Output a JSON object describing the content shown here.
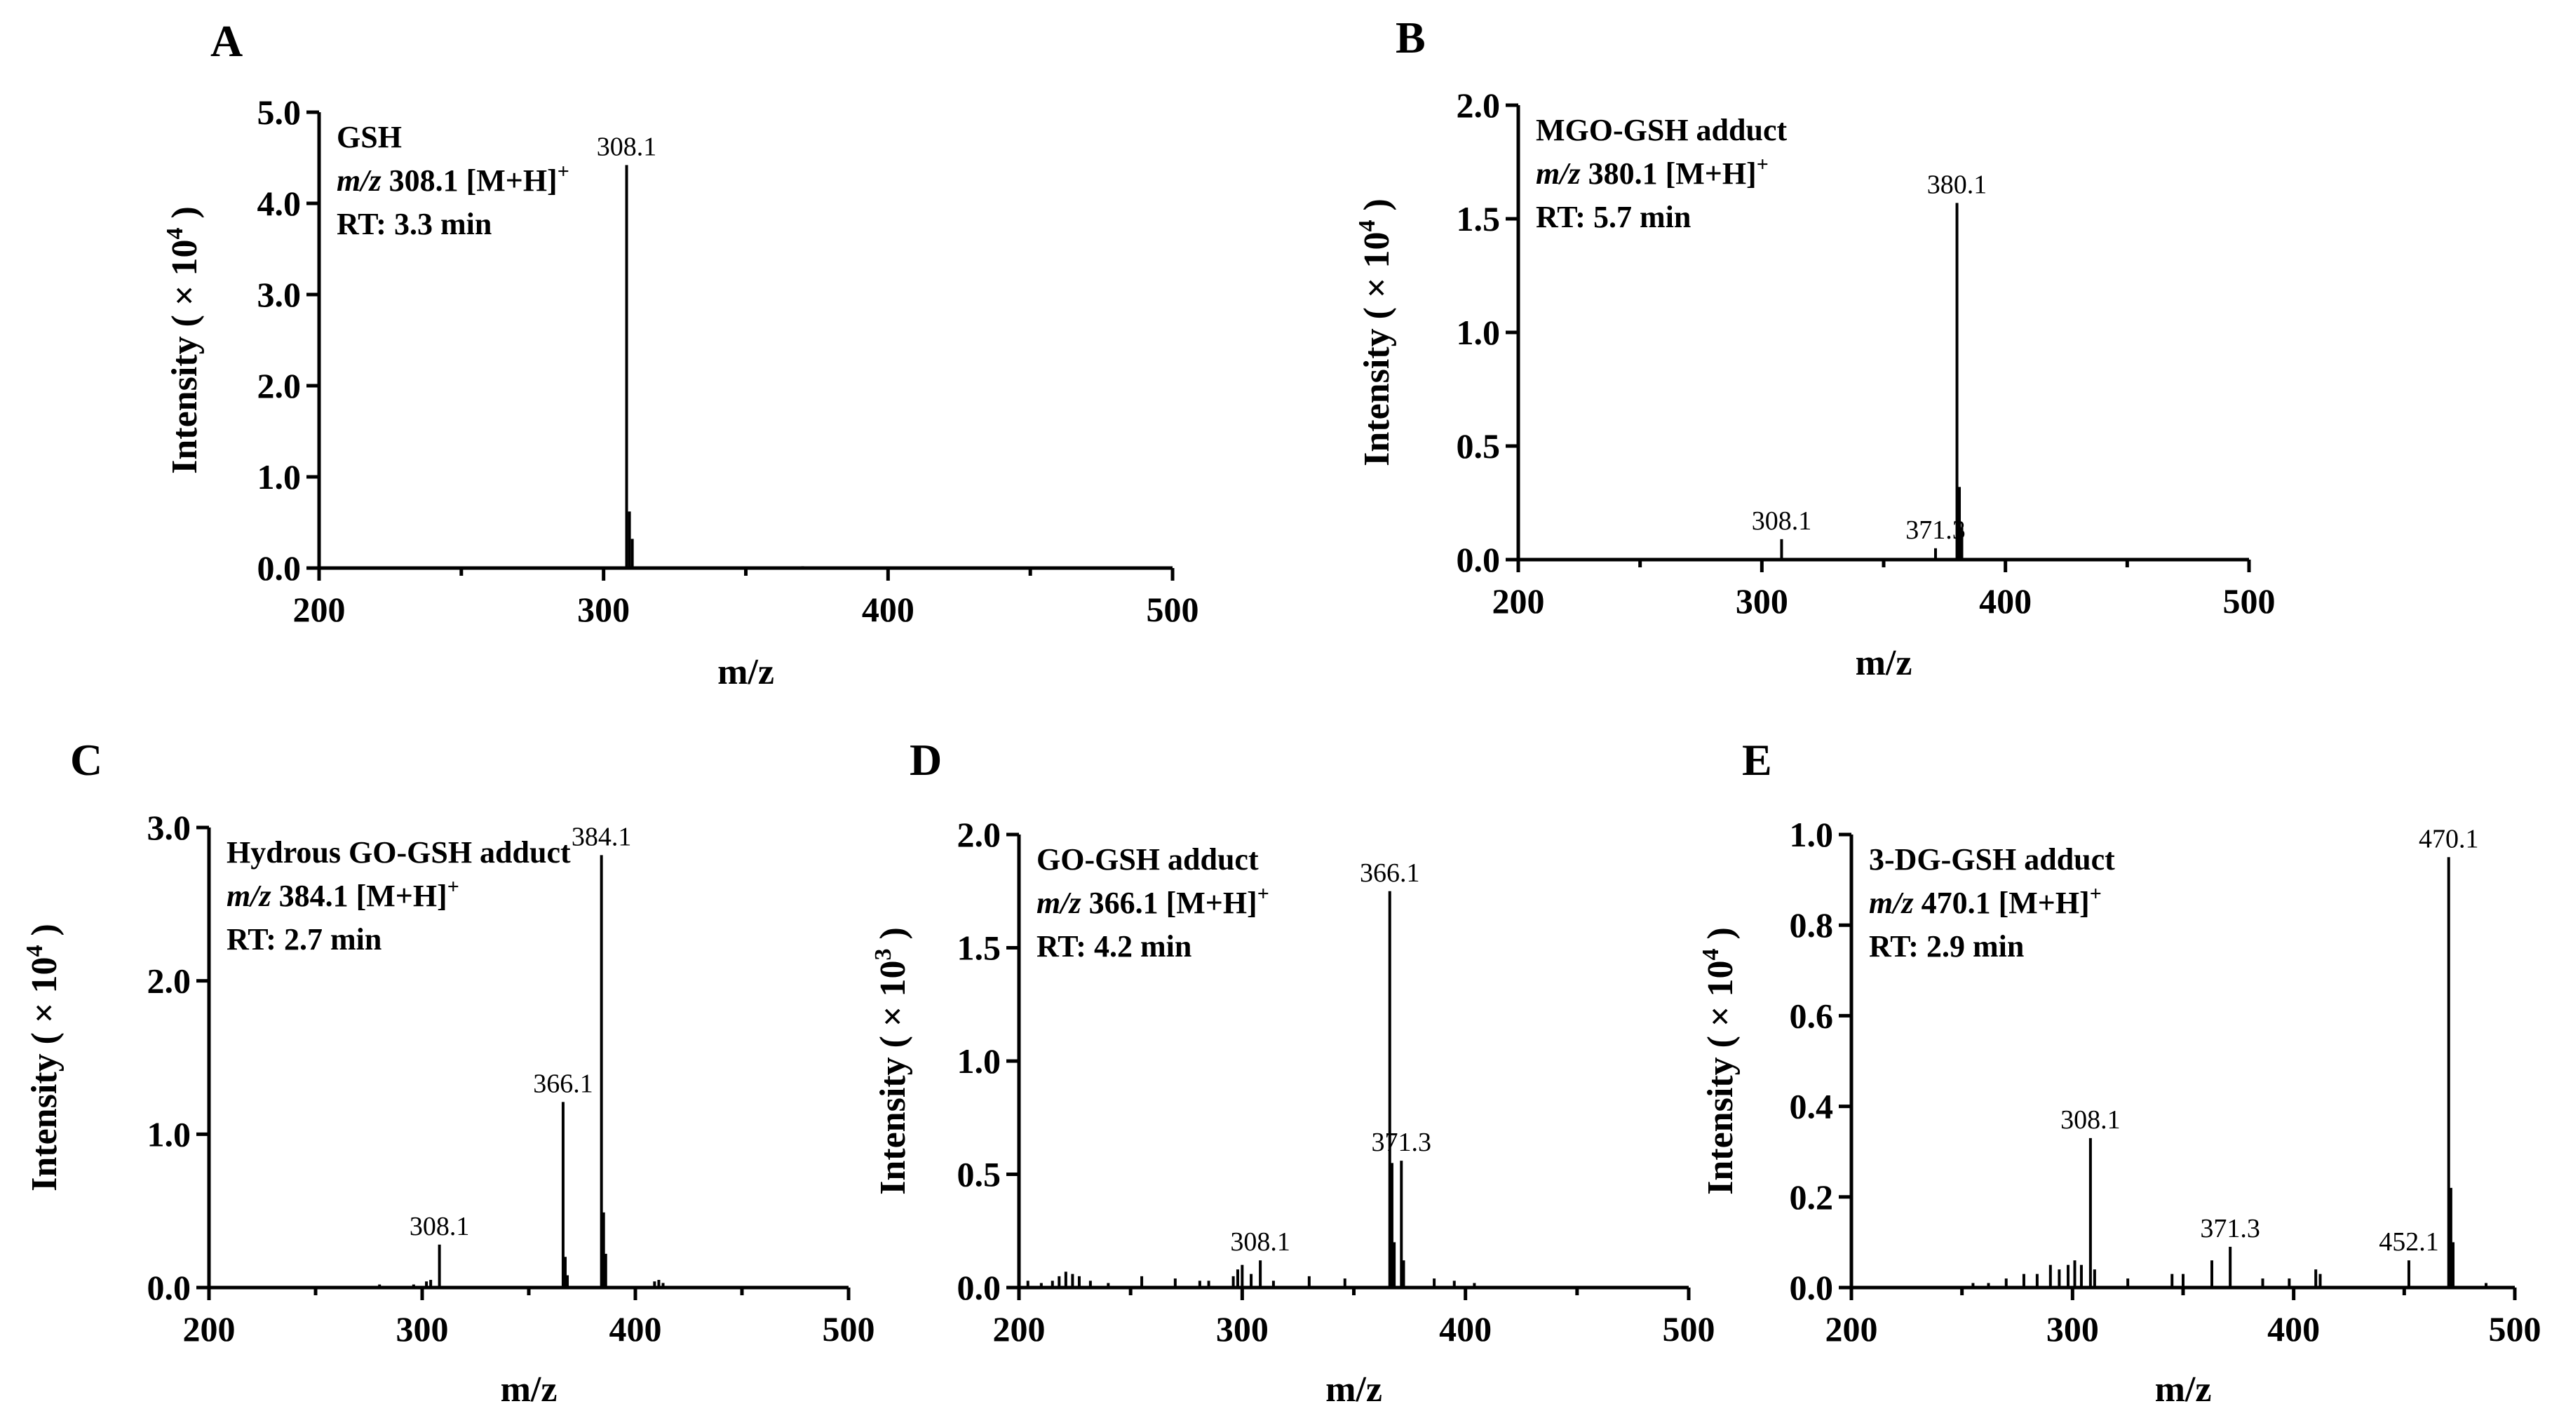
{
  "chart_data": [
    {
      "panel": "A",
      "type": "bar",
      "subtype": "mass spectrum",
      "info": {
        "compound": "GSH",
        "mz_prefix": "m/z",
        "mz_text": " 308.1 [M+H]",
        "mz_sup": "+",
        "rt": "RT: 3.3 min"
      },
      "ylabel": {
        "main": "Intensity ( × 10",
        "sup": "4",
        "close": ")"
      },
      "xlabel": "m/z",
      "xlim": [
        200,
        500
      ],
      "ylim": [
        0,
        5.0
      ],
      "xticks": [
        "200",
        "300",
        "400",
        "500"
      ],
      "xtick_values": [
        200,
        300,
        400,
        500
      ],
      "yticks": [
        "0.0",
        "1.0",
        "2.0",
        "3.0",
        "4.0",
        "5.0"
      ],
      "ytick_values": [
        0,
        1,
        2,
        3,
        4,
        5
      ],
      "peaks": [
        {
          "x": 308.1,
          "y": 4.42,
          "label": "308.1"
        },
        {
          "x": 309.1,
          "y": 0.62,
          "label": ""
        },
        {
          "x": 310.1,
          "y": 0.32,
          "label": ""
        },
        {
          "x": 370.0,
          "y": 0.02,
          "label": ""
        }
      ]
    },
    {
      "panel": "B",
      "type": "bar",
      "subtype": "mass spectrum",
      "info": {
        "compound": "MGO-GSH adduct",
        "mz_prefix": "m/z",
        "mz_text": " 380.1 [M+H]",
        "mz_sup": "+",
        "rt": "RT: 5.7 min"
      },
      "ylabel": {
        "main": "Intensity ( × 10",
        "sup": "4",
        "close": ")"
      },
      "xlabel": "m/z",
      "xlim": [
        200,
        500
      ],
      "ylim": [
        0,
        2.0
      ],
      "xticks": [
        "200",
        "300",
        "400",
        "500"
      ],
      "xtick_values": [
        200,
        300,
        400,
        500
      ],
      "yticks": [
        "0.0",
        "0.5",
        "1.0",
        "1.5",
        "2.0"
      ],
      "ytick_values": [
        0,
        0.5,
        1.0,
        1.5,
        2.0
      ],
      "peaks": [
        {
          "x": 308.1,
          "y": 0.09,
          "label": "308.1"
        },
        {
          "x": 371.3,
          "y": 0.05,
          "label": "371.3"
        },
        {
          "x": 380.1,
          "y": 1.57,
          "label": "380.1"
        },
        {
          "x": 381.1,
          "y": 0.32,
          "label": ""
        },
        {
          "x": 382.1,
          "y": 0.14,
          "label": ""
        }
      ]
    },
    {
      "panel": "C",
      "type": "bar",
      "subtype": "mass spectrum",
      "info": {
        "compound": "Hydrous GO-GSH adduct",
        "mz_prefix": "m/z",
        "mz_text": " 384.1 [M+H]",
        "mz_sup": "+",
        "rt": "RT: 2.7 min"
      },
      "ylabel": {
        "main": "Intensity ( × 10",
        "sup": "4",
        "close": ")"
      },
      "xlabel": "m/z",
      "xlim": [
        200,
        500
      ],
      "ylim": [
        0,
        3.0
      ],
      "xticks": [
        "200",
        "300",
        "400",
        "500"
      ],
      "xtick_values": [
        200,
        300,
        400,
        500
      ],
      "yticks": [
        "0.0",
        "1.0",
        "2.0",
        "3.0"
      ],
      "ytick_values": [
        0,
        1,
        2,
        3
      ],
      "peaks": [
        {
          "x": 270.0,
          "y": 0.01,
          "label": ""
        },
        {
          "x": 280.0,
          "y": 0.02,
          "label": ""
        },
        {
          "x": 296.0,
          "y": 0.02,
          "label": ""
        },
        {
          "x": 302.0,
          "y": 0.04,
          "label": ""
        },
        {
          "x": 304.0,
          "y": 0.05,
          "label": ""
        },
        {
          "x": 308.1,
          "y": 0.28,
          "label": "308.1"
        },
        {
          "x": 366.1,
          "y": 1.21,
          "label": "366.1"
        },
        {
          "x": 367.1,
          "y": 0.2,
          "label": ""
        },
        {
          "x": 368.1,
          "y": 0.08,
          "label": ""
        },
        {
          "x": 384.1,
          "y": 2.82,
          "label": "384.1"
        },
        {
          "x": 385.1,
          "y": 0.49,
          "label": ""
        },
        {
          "x": 386.1,
          "y": 0.22,
          "label": ""
        },
        {
          "x": 409.0,
          "y": 0.04,
          "label": ""
        },
        {
          "x": 411.0,
          "y": 0.05,
          "label": ""
        },
        {
          "x": 413.0,
          "y": 0.03,
          "label": ""
        }
      ]
    },
    {
      "panel": "D",
      "type": "bar",
      "subtype": "mass spectrum",
      "info": {
        "compound": "GO-GSH adduct",
        "mz_prefix": "m/z",
        "mz_text": " 366.1 [M+H]",
        "mz_sup": "+",
        "rt": "RT: 4.2 min"
      },
      "ylabel": {
        "main": "Intensity ( × 10",
        "sup": "3",
        "close": ")"
      },
      "xlabel": "m/z",
      "xlim": [
        200,
        500
      ],
      "ylim": [
        0,
        2.0
      ],
      "xticks": [
        "200",
        "300",
        "400",
        "500"
      ],
      "xtick_values": [
        200,
        300,
        400,
        500
      ],
      "yticks": [
        "0.0",
        "0.5",
        "1.0",
        "1.5",
        "2.0"
      ],
      "ytick_values": [
        0,
        0.5,
        1.0,
        1.5,
        2.0
      ],
      "peaks": [
        {
          "x": 204.0,
          "y": 0.03,
          "label": ""
        },
        {
          "x": 210.0,
          "y": 0.02,
          "label": ""
        },
        {
          "x": 215.0,
          "y": 0.03,
          "label": ""
        },
        {
          "x": 218.0,
          "y": 0.05,
          "label": ""
        },
        {
          "x": 221.0,
          "y": 0.07,
          "label": ""
        },
        {
          "x": 224.0,
          "y": 0.06,
          "label": ""
        },
        {
          "x": 227.0,
          "y": 0.05,
          "label": ""
        },
        {
          "x": 232.0,
          "y": 0.03,
          "label": ""
        },
        {
          "x": 240.0,
          "y": 0.02,
          "label": ""
        },
        {
          "x": 255.0,
          "y": 0.05,
          "label": ""
        },
        {
          "x": 270.0,
          "y": 0.04,
          "label": ""
        },
        {
          "x": 281.0,
          "y": 0.03,
          "label": ""
        },
        {
          "x": 285.0,
          "y": 0.03,
          "label": ""
        },
        {
          "x": 296.0,
          "y": 0.05,
          "label": ""
        },
        {
          "x": 298.0,
          "y": 0.08,
          "label": ""
        },
        {
          "x": 300.0,
          "y": 0.1,
          "label": ""
        },
        {
          "x": 304.0,
          "y": 0.06,
          "label": ""
        },
        {
          "x": 308.1,
          "y": 0.12,
          "label": "308.1"
        },
        {
          "x": 314.0,
          "y": 0.03,
          "label": ""
        },
        {
          "x": 330.0,
          "y": 0.05,
          "label": ""
        },
        {
          "x": 346.0,
          "y": 0.04,
          "label": ""
        },
        {
          "x": 366.1,
          "y": 1.75,
          "label": "366.1"
        },
        {
          "x": 367.1,
          "y": 0.55,
          "label": ""
        },
        {
          "x": 368.1,
          "y": 0.2,
          "label": ""
        },
        {
          "x": 371.3,
          "y": 0.56,
          "label": "371.3"
        },
        {
          "x": 372.3,
          "y": 0.12,
          "label": ""
        },
        {
          "x": 386.0,
          "y": 0.04,
          "label": ""
        },
        {
          "x": 395.0,
          "y": 0.03,
          "label": ""
        },
        {
          "x": 404.0,
          "y": 0.02,
          "label": ""
        }
      ]
    },
    {
      "panel": "E",
      "type": "bar",
      "subtype": "mass spectrum",
      "info": {
        "compound": "3-DG-GSH adduct",
        "mz_prefix": "m/z",
        "mz_text": " 470.1 [M+H]",
        "mz_sup": "+",
        "rt": "RT: 2.9 min"
      },
      "ylabel": {
        "main": "Intensity ( × 10",
        "sup": "4",
        "close": ")"
      },
      "xlabel": "m/z",
      "xlim": [
        200,
        500
      ],
      "ylim": [
        0,
        1.0
      ],
      "xticks": [
        "200",
        "300",
        "400",
        "500"
      ],
      "xtick_values": [
        200,
        300,
        400,
        500
      ],
      "yticks": [
        "0.0",
        "0.2",
        "0.4",
        "0.6",
        "0.8",
        "1.0"
      ],
      "ytick_values": [
        0,
        0.2,
        0.4,
        0.6,
        0.8,
        1.0
      ],
      "peaks": [
        {
          "x": 255.0,
          "y": 0.01,
          "label": ""
        },
        {
          "x": 262.0,
          "y": 0.01,
          "label": ""
        },
        {
          "x": 270.0,
          "y": 0.02,
          "label": ""
        },
        {
          "x": 278.0,
          "y": 0.03,
          "label": ""
        },
        {
          "x": 284.0,
          "y": 0.03,
          "label": ""
        },
        {
          "x": 290.0,
          "y": 0.05,
          "label": ""
        },
        {
          "x": 294.0,
          "y": 0.04,
          "label": ""
        },
        {
          "x": 298.0,
          "y": 0.05,
          "label": ""
        },
        {
          "x": 301.0,
          "y": 0.06,
          "label": ""
        },
        {
          "x": 304.0,
          "y": 0.05,
          "label": ""
        },
        {
          "x": 308.1,
          "y": 0.33,
          "label": "308.1"
        },
        {
          "x": 310.0,
          "y": 0.04,
          "label": ""
        },
        {
          "x": 325.0,
          "y": 0.02,
          "label": ""
        },
        {
          "x": 345.0,
          "y": 0.03,
          "label": ""
        },
        {
          "x": 350.0,
          "y": 0.03,
          "label": ""
        },
        {
          "x": 363.0,
          "y": 0.06,
          "label": ""
        },
        {
          "x": 371.3,
          "y": 0.09,
          "label": "371.3"
        },
        {
          "x": 386.0,
          "y": 0.02,
          "label": ""
        },
        {
          "x": 398.0,
          "y": 0.02,
          "label": ""
        },
        {
          "x": 410.0,
          "y": 0.04,
          "label": ""
        },
        {
          "x": 412.0,
          "y": 0.03,
          "label": ""
        },
        {
          "x": 452.1,
          "y": 0.06,
          "label": "452.1"
        },
        {
          "x": 470.1,
          "y": 0.95,
          "label": "470.1"
        },
        {
          "x": 471.1,
          "y": 0.22,
          "label": ""
        },
        {
          "x": 472.1,
          "y": 0.1,
          "label": ""
        },
        {
          "x": 487.0,
          "y": 0.01,
          "label": ""
        }
      ]
    }
  ]
}
